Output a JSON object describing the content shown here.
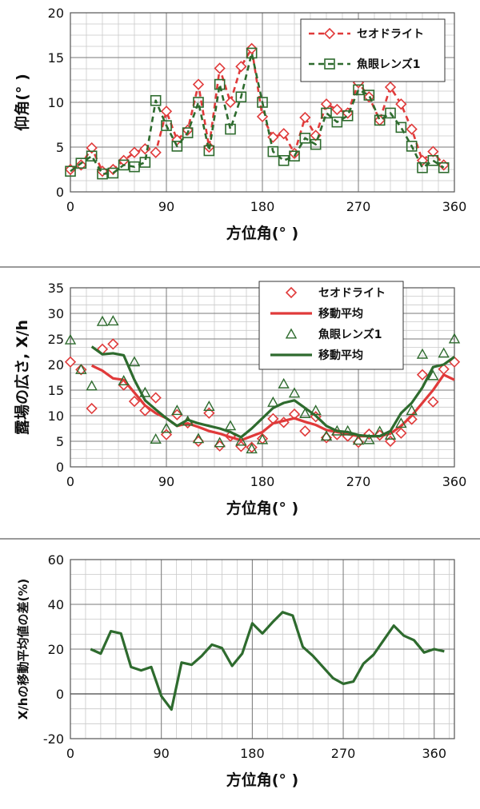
{
  "chart_data": [
    {
      "type": "line",
      "title": "",
      "xlabel": "方位角(° )",
      "ylabel": "仰角(° )",
      "xlim": [
        0,
        360
      ],
      "ylim": [
        0,
        20
      ],
      "xticks": [
        0,
        90,
        180,
        270,
        360
      ],
      "yticks": [
        0,
        5,
        10,
        15,
        20
      ],
      "grid": true,
      "legend_position": "top-right",
      "series": [
        {
          "name": "セオドライト",
          "color": "#e03a3a",
          "marker": "diamond",
          "line": "dashed",
          "x": [
            0,
            10,
            20,
            30,
            40,
            50,
            60,
            70,
            80,
            90,
            100,
            110,
            120,
            130,
            140,
            150,
            160,
            170,
            180,
            190,
            200,
            210,
            220,
            230,
            240,
            250,
            260,
            270,
            280,
            290,
            300,
            310,
            320,
            330,
            340,
            350
          ],
          "y": [
            2.5,
            3.0,
            4.9,
            2.3,
            2.5,
            3.5,
            4.4,
            4.8,
            4.4,
            9.0,
            5.8,
            6.9,
            12.0,
            5.0,
            13.8,
            10.0,
            14.0,
            16.0,
            8.4,
            6.1,
            6.5,
            4.3,
            8.3,
            6.3,
            9.8,
            9.2,
            8.8,
            12.2,
            10.6,
            8.0,
            11.7,
            9.8,
            7.0,
            3.5,
            4.5,
            3.0
          ]
        },
        {
          "name": "魚眼レンズ1",
          "color": "#2e6b2e",
          "marker": "square",
          "line": "dashed",
          "x": [
            0,
            10,
            20,
            30,
            40,
            50,
            60,
            70,
            80,
            90,
            100,
            110,
            120,
            130,
            140,
            150,
            160,
            170,
            180,
            190,
            200,
            210,
            220,
            230,
            240,
            250,
            260,
            270,
            280,
            290,
            300,
            310,
            320,
            330,
            340,
            350
          ],
          "y": [
            2.3,
            3.2,
            4.0,
            2.0,
            2.1,
            3.0,
            2.8,
            3.3,
            10.2,
            7.4,
            5.1,
            6.6,
            10.0,
            4.6,
            12.0,
            7.0,
            10.6,
            15.5,
            10.0,
            4.5,
            3.5,
            4.0,
            6.0,
            5.3,
            8.8,
            7.8,
            8.5,
            11.4,
            10.8,
            8.0,
            8.8,
            7.2,
            5.1,
            2.7,
            3.5,
            2.7
          ]
        }
      ]
    },
    {
      "type": "scatter",
      "title": "",
      "xlabel": "方位角(° )",
      "ylabel": "露場の広さ, X/h",
      "xlim": [
        0,
        360
      ],
      "ylim": [
        0,
        35
      ],
      "xticks": [
        0,
        90,
        180,
        270,
        360
      ],
      "yticks": [
        0,
        5,
        10,
        15,
        20,
        25,
        30,
        35
      ],
      "grid": true,
      "legend_position": "top-right",
      "series": [
        {
          "name": "セオドライト",
          "color": "#e03a3a",
          "marker": "diamond",
          "x": [
            0,
            10,
            20,
            30,
            40,
            50,
            60,
            70,
            80,
            90,
            100,
            110,
            120,
            130,
            140,
            150,
            160,
            170,
            180,
            190,
            200,
            210,
            220,
            230,
            240,
            250,
            260,
            270,
            280,
            290,
            300,
            310,
            320,
            330,
            340,
            350,
            360
          ],
          "y": [
            20.5,
            19.0,
            11.4,
            23.0,
            24.0,
            16.0,
            12.8,
            11.0,
            13.5,
            6.3,
            10.2,
            8.6,
            5.0,
            10.5,
            4.1,
            6.0,
            4.0,
            3.8,
            5.5,
            9.4,
            8.7,
            10.3,
            7.0,
            9.8,
            5.7,
            6.3,
            6.0,
            4.8,
            6.4,
            6.2,
            5.0,
            6.6,
            9.3,
            18.0,
            12.7,
            19.1,
            20.5
          ]
        },
        {
          "name": "移動平均",
          "color": "#e03a3a",
          "marker": "none",
          "x": [
            20,
            30,
            40,
            50,
            60,
            70,
            80,
            90,
            100,
            110,
            120,
            130,
            140,
            150,
            160,
            170,
            180,
            190,
            200,
            210,
            220,
            230,
            240,
            250,
            260,
            270,
            280,
            290,
            300,
            310,
            320,
            330,
            340,
            350,
            360
          ],
          "y": [
            19.8,
            18.8,
            17.3,
            17.0,
            14.5,
            12.0,
            10.5,
            9.5,
            8.0,
            8.5,
            7.8,
            7.0,
            6.5,
            5.8,
            5.2,
            6.0,
            6.8,
            8.5,
            9.0,
            9.5,
            8.8,
            8.2,
            7.2,
            6.8,
            6.4,
            6.0,
            6.0,
            6.0,
            6.5,
            8.0,
            10.0,
            12.5,
            15.0,
            18.0,
            17.0
          ]
        },
        {
          "name": "魚眼レンズ1",
          "color": "#2e6b2e",
          "marker": "triangle",
          "x": [
            0,
            10,
            20,
            30,
            40,
            50,
            60,
            70,
            80,
            90,
            100,
            110,
            120,
            130,
            140,
            150,
            160,
            170,
            180,
            190,
            200,
            210,
            220,
            230,
            240,
            250,
            260,
            270,
            280,
            290,
            300,
            310,
            320,
            330,
            340,
            350,
            360
          ],
          "y": [
            24.8,
            19.0,
            15.8,
            28.4,
            28.5,
            16.8,
            20.5,
            14.5,
            5.4,
            7.5,
            11.0,
            8.9,
            5.5,
            11.8,
            4.7,
            8.0,
            5.0,
            3.5,
            5.3,
            12.6,
            16.2,
            14.4,
            10.4,
            11.0,
            6.0,
            7.0,
            7.0,
            5.2,
            5.3,
            6.9,
            6.2,
            8.5,
            11.0,
            22.0,
            17.8,
            22.2,
            25.0
          ]
        },
        {
          "name": "移動平均",
          "color": "#2e6b2e",
          "marker": "none",
          "x": [
            20,
            30,
            40,
            50,
            60,
            70,
            80,
            90,
            100,
            110,
            120,
            130,
            140,
            150,
            160,
            170,
            180,
            190,
            200,
            210,
            220,
            230,
            240,
            250,
            260,
            270,
            280,
            290,
            300,
            310,
            320,
            330,
            340,
            350,
            360
          ],
          "y": [
            23.5,
            22.0,
            22.2,
            21.8,
            17.0,
            13.0,
            11.2,
            9.5,
            8.0,
            9.2,
            8.5,
            8.0,
            7.5,
            6.8,
            5.8,
            7.5,
            9.5,
            11.5,
            12.5,
            13.0,
            11.5,
            10.0,
            8.0,
            7.0,
            6.8,
            6.2,
            6.0,
            6.0,
            7.0,
            10.5,
            12.5,
            15.5,
            19.5,
            20.0,
            21.5
          ]
        }
      ]
    },
    {
      "type": "line",
      "title": "",
      "xlabel": "方位角(° )",
      "ylabel": "X/hの移動平均値の差(%)",
      "xlim": [
        0,
        380
      ],
      "ylim": [
        -20,
        60
      ],
      "xticks": [
        0,
        90,
        180,
        270,
        360
      ],
      "yticks": [
        -20,
        0,
        20,
        40,
        60
      ],
      "grid": true,
      "series": [
        {
          "name": "",
          "color": "#2e6b2e",
          "marker": "none",
          "x": [
            20,
            30,
            40,
            50,
            60,
            70,
            80,
            90,
            100,
            110,
            120,
            130,
            140,
            150,
            160,
            170,
            180,
            190,
            200,
            210,
            220,
            230,
            240,
            250,
            260,
            270,
            280,
            290,
            300,
            310,
            320,
            330,
            340,
            350,
            360,
            370
          ],
          "y": [
            20,
            18,
            28,
            27,
            12,
            10.5,
            12,
            -1,
            -7,
            14,
            13,
            17,
            22,
            20.5,
            12.5,
            18,
            31.5,
            27,
            32,
            36.5,
            35,
            21,
            17,
            12,
            7,
            4.5,
            5.5,
            13.5,
            17.5,
            24,
            30.5,
            26,
            24,
            18.5,
            20,
            19
          ]
        }
      ]
    }
  ]
}
